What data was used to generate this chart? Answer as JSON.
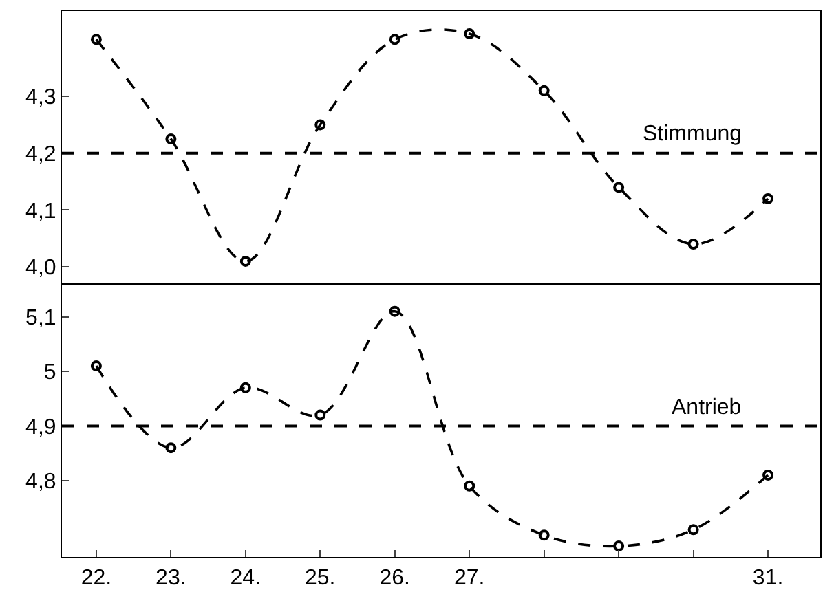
{
  "chart_data": [
    {
      "type": "line",
      "x": [
        22,
        23,
        24,
        25,
        26,
        27,
        28,
        29,
        30,
        31
      ],
      "series": [
        {
          "color": "#000000",
          "values": [
            4.4,
            4.225,
            4.01,
            4.25,
            4.4,
            4.41,
            4.31,
            4.14,
            4.04,
            4.12
          ]
        }
      ],
      "xlim": [
        21.54,
        31.7
      ],
      "ylim": [
        3.97,
        4.45
      ],
      "yticks": [
        {
          "value": 4.0,
          "label": "4,0"
        },
        {
          "value": 4.1,
          "label": "4,1"
        },
        {
          "value": 4.2,
          "label": "4,2"
        },
        {
          "value": 4.3,
          "label": "4,3"
        }
      ],
      "ref_lines": [
        {
          "axis": "y",
          "value": 4.2,
          "label": "Stimmung",
          "line_style": "dashed",
          "color": "#000000"
        }
      ],
      "tick_labels": "y",
      "grid": false,
      "marker": "circle",
      "line_style": "dashed"
    },
    {
      "type": "line",
      "x": [
        22,
        23,
        24,
        25,
        26,
        27,
        28,
        29,
        30,
        31
      ],
      "series": [
        {
          "color": "#000000",
          "values": [
            5.01,
            4.86,
            4.97,
            4.92,
            5.11,
            4.79,
            4.7,
            4.68,
            4.71,
            4.81
          ]
        }
      ],
      "xlim": [
        21.54,
        31.7
      ],
      "xticks": [
        {
          "value": 22,
          "label": "22."
        },
        {
          "value": 23,
          "label": "23."
        },
        {
          "value": 24,
          "label": "24."
        },
        {
          "value": 25,
          "label": "25."
        },
        {
          "value": 26,
          "label": "26."
        },
        {
          "value": 27,
          "label": "27."
        },
        {
          "value": 28,
          "label": null
        },
        {
          "value": 29,
          "label": null
        },
        {
          "value": 30,
          "label": null
        },
        {
          "value": 31,
          "label": "31."
        }
      ],
      "ylim": [
        4.66,
        5.16
      ],
      "yticks": [
        {
          "value": 4.8,
          "label": "4,8"
        },
        {
          "value": 4.9,
          "label": "4,9"
        },
        {
          "value": 5,
          "label": "5"
        },
        {
          "value": 5.1,
          "label": "5,1"
        }
      ],
      "ref_lines": [
        {
          "axis": "y",
          "value": 4.9,
          "label": "Antrieb",
          "line_style": "dashed",
          "color": "#000000"
        }
      ],
      "grid": false,
      "marker": "circle",
      "line_style": "dashed"
    }
  ]
}
